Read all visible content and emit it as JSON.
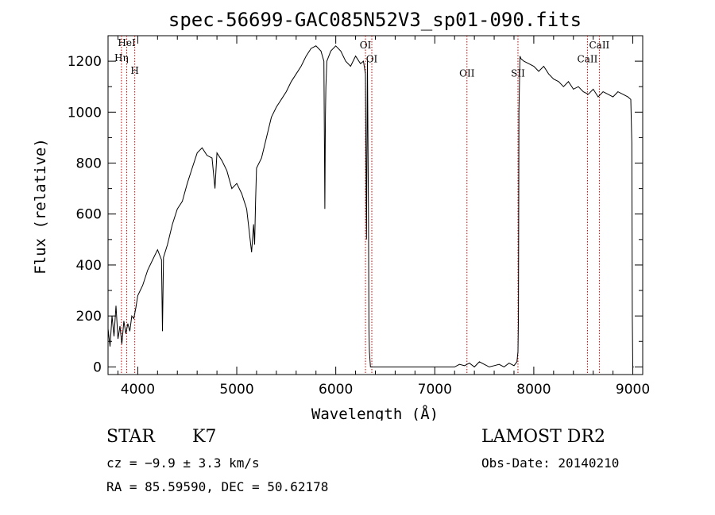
{
  "chart_data": {
    "type": "line",
    "title": "spec-56699-GAC085N52V3_sp01-090.fits",
    "xlabel": "Wavelength (Å)",
    "ylabel": "Flux (relative)",
    "xlim": [
      3700,
      9100
    ],
    "ylim": [
      -30,
      1300
    ],
    "xticks": [
      4000,
      5000,
      6000,
      7000,
      8000,
      9000
    ],
    "yticks": [
      0,
      200,
      400,
      600,
      800,
      1000,
      1200
    ],
    "grid": false,
    "line_color": "#000000",
    "marker_color": "#cc0000",
    "series": [
      {
        "x": [
          3700,
          3720,
          3740,
          3760,
          3780,
          3800,
          3820,
          3840,
          3860,
          3880,
          3900,
          3920,
          3940,
          3960,
          3980,
          4000,
          4050,
          4100,
          4150,
          4200,
          4240,
          4250,
          4260,
          4300,
          4350,
          4400,
          4450,
          4500,
          4550,
          4600,
          4650,
          4700,
          4750,
          4780,
          4800,
          4850,
          4900,
          4950,
          5000,
          5050,
          5100,
          5150,
          5170,
          5180,
          5190,
          5200,
          5250,
          5300,
          5350,
          5400,
          5450,
          5500,
          5550,
          5600,
          5650,
          5700,
          5750,
          5800,
          5850,
          5880,
          5890,
          5895,
          5900,
          5910,
          5950,
          6000,
          6050,
          6100,
          6150,
          6200,
          6250,
          6280,
          6300,
          6310,
          6320,
          6330,
          6335,
          6340,
          6350,
          7000,
          7200,
          7250,
          7300,
          7350,
          7400,
          7450,
          7500,
          7550,
          7600,
          7650,
          7700,
          7750,
          7800,
          7830,
          7840,
          7845,
          7850,
          7860,
          7870,
          7900,
          7950,
          8000,
          8050,
          8100,
          8150,
          8200,
          8250,
          8300,
          8350,
          8400,
          8450,
          8500,
          8550,
          8600,
          8650,
          8700,
          8750,
          8800,
          8850,
          8900,
          8950,
          8980,
          8990,
          8995,
          9000,
          9010
        ],
        "y": [
          150,
          80,
          200,
          120,
          240,
          110,
          160,
          90,
          180,
          130,
          170,
          140,
          200,
          190,
          230,
          280,
          320,
          380,
          420,
          460,
          420,
          140,
          430,
          480,
          560,
          620,
          650,
          720,
          780,
          840,
          860,
          830,
          820,
          700,
          840,
          810,
          770,
          700,
          720,
          680,
          620,
          450,
          560,
          480,
          650,
          780,
          820,
          900,
          980,
          1020,
          1050,
          1080,
          1120,
          1150,
          1180,
          1220,
          1250,
          1260,
          1240,
          1200,
          620,
          980,
          1100,
          1200,
          1240,
          1260,
          1240,
          1200,
          1180,
          1220,
          1190,
          1200,
          1150,
          500,
          1200,
          600,
          150,
          60,
          0,
          0,
          0,
          10,
          5,
          15,
          0,
          20,
          10,
          0,
          5,
          10,
          0,
          15,
          5,
          20,
          60,
          200,
          1000,
          1220,
          1210,
          1200,
          1190,
          1180,
          1160,
          1180,
          1150,
          1130,
          1120,
          1100,
          1120,
          1090,
          1100,
          1080,
          1070,
          1090,
          1060,
          1080,
          1070,
          1060,
          1080,
          1070,
          1060,
          1050,
          880,
          200,
          0,
          0
        ]
      }
    ],
    "lines": [
      {
        "name": "HeI",
        "x": 3889,
        "label_y": 1260
      },
      {
        "name": "Hη",
        "x": 3835,
        "label_y": 1200
      },
      {
        "name": "H",
        "x": 3970,
        "label_y": 1150
      },
      {
        "name": "OI",
        "x": 6300,
        "label_y": 1250
      },
      {
        "name": "OI",
        "x": 6364,
        "label_y": 1195
      },
      {
        "name": "OII",
        "x": 7325,
        "label_y": 1140
      },
      {
        "name": "SII",
        "x": 7840,
        "label_y": 1140
      },
      {
        "name": "CaII",
        "x": 8542,
        "label_y": 1195
      },
      {
        "name": "CaII",
        "x": 8662,
        "label_y": 1250
      }
    ]
  },
  "footer": {
    "object_class": "STAR",
    "subclass": "K7",
    "velocity": "cz = −9.9 ± 3.3 km/s",
    "coords": "RA =  85.59590, DEC =  50.62178",
    "survey": "LAMOST DR2",
    "obs_date": "Obs-Date: 20140210"
  }
}
